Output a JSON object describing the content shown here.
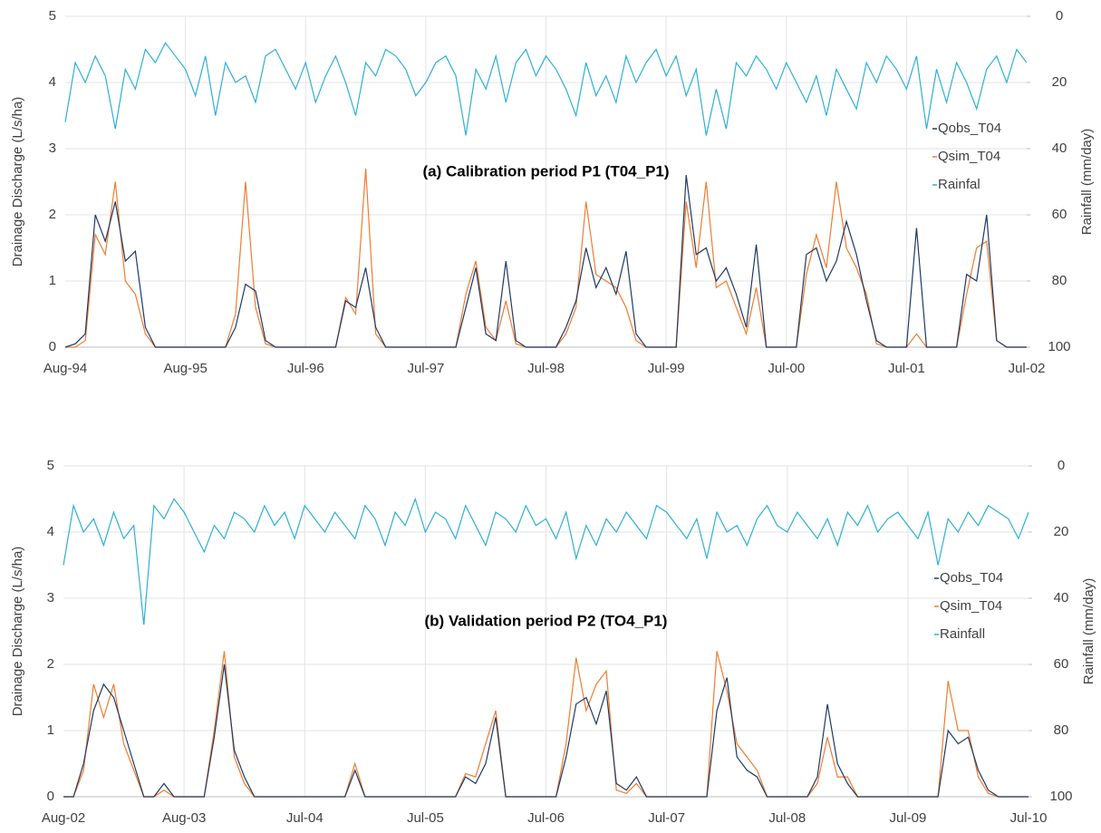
{
  "chart_data": [
    {
      "type": "line",
      "title": "(a) Calibration period P1 (T04_P1)",
      "y_label": "Drainage Discharge (L/s/ha)",
      "y2_label": "Rainfall (mm/day)",
      "categories": [
        "Aug-94",
        null,
        null,
        null,
        null,
        null,
        null,
        null,
        null,
        null,
        null,
        null,
        "Aug-95",
        null,
        null,
        null,
        null,
        null,
        null,
        null,
        null,
        null,
        null,
        null,
        "Jul-96",
        null,
        null,
        null,
        null,
        null,
        null,
        null,
        null,
        null,
        null,
        null,
        "Jul-97",
        null,
        null,
        null,
        null,
        null,
        null,
        null,
        null,
        null,
        null,
        null,
        "Jul-98",
        null,
        null,
        null,
        null,
        null,
        null,
        null,
        null,
        null,
        null,
        null,
        "Jul-99",
        null,
        null,
        null,
        null,
        null,
        null,
        null,
        null,
        null,
        null,
        null,
        "Jul-00",
        null,
        null,
        null,
        null,
        null,
        null,
        null,
        null,
        null,
        null,
        null,
        "Jul-01",
        null,
        null,
        null,
        null,
        null,
        null,
        null,
        null,
        null,
        null,
        null,
        "Jul-02"
      ],
      "series": [
        {
          "name": "Qobs_T04",
          "color": "#1f3864",
          "values": [
            0,
            0.05,
            0.2,
            2.0,
            1.6,
            2.2,
            1.3,
            1.45,
            0.3,
            0,
            0,
            0,
            0,
            0,
            0,
            0,
            0,
            0.3,
            0.95,
            0.85,
            0.1,
            0,
            0,
            0,
            0,
            0,
            0,
            0,
            0.7,
            0.6,
            1.2,
            0.3,
            0,
            0,
            0,
            0,
            0,
            0,
            0,
            0,
            0.6,
            1.2,
            0.2,
            0.1,
            1.3,
            0.1,
            0,
            0,
            0,
            0,
            0.3,
            0.7,
            1.5,
            0.9,
            1.2,
            0.8,
            1.45,
            0.2,
            0,
            0,
            0,
            0,
            2.6,
            1.4,
            1.5,
            1.0,
            1.2,
            0.8,
            0.3,
            1.55,
            0,
            0,
            0,
            0,
            1.4,
            1.5,
            1.0,
            1.3,
            1.9,
            1.4,
            0.7,
            0.1,
            0,
            0,
            0,
            1.8,
            0,
            0,
            0,
            0,
            1.1,
            1.0,
            2.0,
            0.1,
            0,
            0,
            0
          ]
        },
        {
          "name": "Qsim_T04",
          "color": "#ed7d31",
          "values": [
            0,
            0,
            0.1,
            1.7,
            1.4,
            2.5,
            1.0,
            0.8,
            0.2,
            0,
            0,
            0,
            0,
            0,
            0,
            0,
            0,
            0.5,
            2.5,
            0.6,
            0.05,
            0,
            0,
            0,
            0,
            0,
            0,
            0,
            0.75,
            0.5,
            2.7,
            0.2,
            0,
            0,
            0,
            0,
            0,
            0,
            0,
            0,
            0.8,
            1.3,
            0.3,
            0.1,
            0.7,
            0.05,
            0,
            0,
            0,
            0,
            0.2,
            0.6,
            2.2,
            1.1,
            1.0,
            0.9,
            0.6,
            0.1,
            0,
            0,
            0,
            0,
            2.2,
            1.2,
            2.5,
            0.9,
            1.0,
            0.6,
            0.2,
            0.9,
            0,
            0,
            0,
            0,
            1.1,
            1.7,
            1.2,
            2.5,
            1.5,
            1.2,
            0.8,
            0.05,
            0,
            0,
            0,
            0.2,
            0,
            0,
            0,
            0,
            0.8,
            1.5,
            1.6,
            0.1,
            0,
            0,
            0
          ]
        },
        {
          "name": "Rainfal",
          "color": "#2eb0d4",
          "axis": "y2",
          "values": [
            32,
            14,
            20,
            12,
            18,
            34,
            16,
            22,
            10,
            14,
            8,
            12,
            16,
            24,
            12,
            30,
            14,
            20,
            18,
            26,
            12,
            10,
            16,
            22,
            14,
            26,
            18,
            12,
            20,
            30,
            14,
            18,
            10,
            12,
            16,
            24,
            20,
            14,
            12,
            18,
            36,
            16,
            22,
            12,
            26,
            14,
            10,
            18,
            12,
            16,
            22,
            30,
            14,
            24,
            18,
            26,
            12,
            20,
            14,
            10,
            18,
            12,
            24,
            16,
            36,
            22,
            34,
            14,
            18,
            12,
            16,
            22,
            14,
            20,
            26,
            18,
            30,
            16,
            22,
            28,
            14,
            20,
            12,
            16,
            22,
            12,
            34,
            16,
            26,
            14,
            20,
            28,
            16,
            12,
            20,
            10,
            14
          ]
        }
      ],
      "ylim": [
        0,
        5
      ],
      "yticks": [
        0,
        1,
        2,
        3,
        4,
        5
      ],
      "y2lim": [
        100,
        0
      ],
      "y2ticks": [
        0,
        20,
        40,
        60,
        80,
        100
      ],
      "grid": true,
      "legend": "right"
    },
    {
      "type": "line",
      "title": "(b) Validation period P2 (TO4_P1)",
      "y_label": "Drainage Discharge (L/s/ha)",
      "y2_label": "Rainfall (mm/day)",
      "categories": [
        "Aug-02",
        null,
        null,
        null,
        null,
        null,
        null,
        null,
        null,
        null,
        null,
        null,
        "Aug-03",
        null,
        null,
        null,
        null,
        null,
        null,
        null,
        null,
        null,
        null,
        null,
        "Jul-04",
        null,
        null,
        null,
        null,
        null,
        null,
        null,
        null,
        null,
        null,
        null,
        "Jul-05",
        null,
        null,
        null,
        null,
        null,
        null,
        null,
        null,
        null,
        null,
        null,
        "Jul-06",
        null,
        null,
        null,
        null,
        null,
        null,
        null,
        null,
        null,
        null,
        null,
        "Jul-07",
        null,
        null,
        null,
        null,
        null,
        null,
        null,
        null,
        null,
        null,
        null,
        "Jul-08",
        null,
        null,
        null,
        null,
        null,
        null,
        null,
        null,
        null,
        null,
        null,
        "Jul-09",
        null,
        null,
        null,
        null,
        null,
        null,
        null,
        null,
        null,
        null,
        null,
        "Jul-10"
      ],
      "series": [
        {
          "name": "Qobs_T04",
          "color": "#1f3864",
          "values": [
            0,
            0,
            0.5,
            1.3,
            1.7,
            1.5,
            1.0,
            0.5,
            0,
            0,
            0.2,
            0,
            0,
            0,
            0,
            0.9,
            2.0,
            0.7,
            0.3,
            0,
            0,
            0,
            0,
            0,
            0,
            0,
            0,
            0,
            0,
            0.4,
            0,
            0,
            0,
            0,
            0,
            0,
            0,
            0,
            0,
            0,
            0.3,
            0.2,
            0.5,
            1.2,
            0,
            0,
            0,
            0,
            0,
            0,
            0.6,
            1.4,
            1.5,
            1.1,
            1.6,
            0.2,
            0.1,
            0.3,
            0,
            0,
            0,
            0,
            0,
            0,
            0,
            1.3,
            1.8,
            0.6,
            0.4,
            0.3,
            0,
            0,
            0,
            0,
            0,
            0.3,
            1.4,
            0.5,
            0.2,
            0,
            0,
            0,
            0,
            0,
            0,
            0,
            0,
            0,
            1.0,
            0.8,
            0.9,
            0.4,
            0.1,
            0,
            0,
            0,
            0
          ]
        },
        {
          "name": "Qsim_T04",
          "color": "#ed7d31",
          "values": [
            0,
            0,
            0.4,
            1.7,
            1.2,
            1.7,
            0.8,
            0.4,
            0,
            0,
            0.1,
            0,
            0,
            0,
            0,
            1.0,
            2.2,
            0.6,
            0.2,
            0,
            0,
            0,
            0,
            0,
            0,
            0,
            0,
            0,
            0,
            0.5,
            0,
            0,
            0,
            0,
            0,
            0,
            0,
            0,
            0,
            0,
            0.35,
            0.3,
            0.8,
            1.3,
            0,
            0,
            0,
            0,
            0,
            0,
            0.8,
            2.1,
            1.3,
            1.7,
            1.9,
            0.1,
            0.05,
            0.2,
            0,
            0,
            0,
            0,
            0,
            0,
            0,
            2.2,
            1.6,
            0.8,
            0.6,
            0.4,
            0,
            0,
            0,
            0,
            0,
            0.2,
            0.9,
            0.3,
            0.3,
            0,
            0,
            0,
            0,
            0,
            0,
            0,
            0,
            0,
            1.75,
            1.0,
            1.0,
            0.3,
            0.05,
            0,
            0,
            0,
            0
          ]
        },
        {
          "name": "Rainfall",
          "color": "#2eb0d4",
          "axis": "y2",
          "values": [
            30,
            12,
            20,
            16,
            24,
            14,
            22,
            18,
            48,
            12,
            16,
            10,
            14,
            20,
            26,
            18,
            22,
            14,
            16,
            20,
            12,
            18,
            14,
            22,
            12,
            16,
            20,
            14,
            18,
            22,
            12,
            16,
            24,
            14,
            18,
            10,
            20,
            14,
            16,
            22,
            12,
            18,
            24,
            14,
            16,
            20,
            12,
            18,
            16,
            22,
            14,
            28,
            18,
            24,
            16,
            20,
            14,
            18,
            22,
            12,
            14,
            18,
            22,
            16,
            28,
            14,
            20,
            18,
            24,
            16,
            12,
            18,
            20,
            14,
            18,
            22,
            16,
            24,
            14,
            18,
            12,
            20,
            16,
            14,
            18,
            22,
            14,
            30,
            16,
            20,
            14,
            18,
            12,
            14,
            16,
            22,
            14
          ]
        }
      ],
      "ylim": [
        0,
        5
      ],
      "yticks": [
        0,
        1,
        2,
        3,
        4,
        5
      ],
      "y2lim": [
        100,
        0
      ],
      "y2ticks": [
        0,
        20,
        40,
        60,
        80,
        100
      ],
      "grid": true,
      "legend": "right"
    }
  ]
}
